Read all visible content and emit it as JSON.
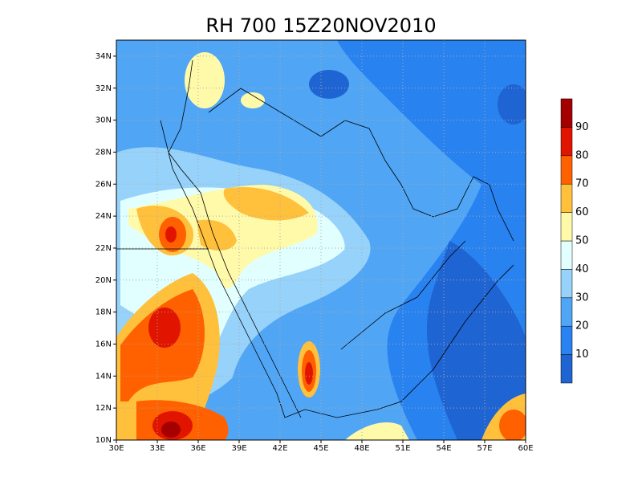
{
  "title": "RH 700 15Z20NOV2010",
  "map": {
    "lon_labels": [
      "30E",
      "33E",
      "36E",
      "39E",
      "42E",
      "45E",
      "48E",
      "51E",
      "54E",
      "57E",
      "60E"
    ],
    "lat_labels": [
      "10N",
      "12N",
      "14N",
      "16N",
      "18N",
      "20N",
      "22N",
      "24N",
      "26N",
      "28N",
      "30N",
      "32N",
      "34N"
    ]
  },
  "colorbar": {
    "colors": [
      "#1e64d2",
      "#2882f0",
      "#50a5f5",
      "#96d2fa",
      "#e1ffff",
      "#fffaaa",
      "#ffc03c",
      "#ff6000",
      "#e11400",
      "#a50000"
    ],
    "labels": [
      "10",
      "20",
      "30",
      "40",
      "50",
      "60",
      "70",
      "80",
      "90"
    ]
  }
}
